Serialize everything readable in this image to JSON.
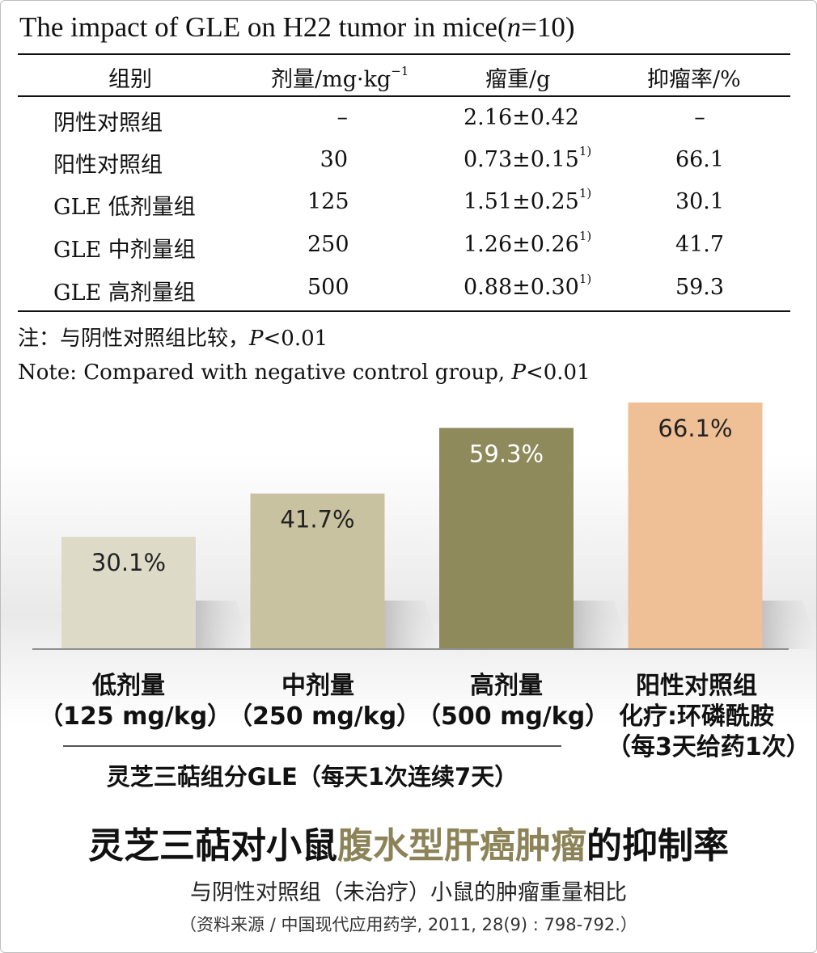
{
  "table": {
    "title_prefix": "The impact of GLE on H22 tumor in mice(",
    "title_n": "n",
    "title_suffix": "=10)",
    "headers": {
      "group": "组别",
      "dose_prefix": "剂量/mg·kg",
      "dose_sup": "−1",
      "weight": "瘤重/g",
      "rate": "抑瘤率/%"
    },
    "rows": [
      {
        "group": "阴性对照组",
        "dose": "–",
        "weight": "2.16±0.42",
        "mark": "",
        "rate": "–"
      },
      {
        "group": "阳性对照组",
        "dose": "30",
        "weight": "0.73±0.15",
        "mark": "1)",
        "rate": "66.1"
      },
      {
        "group": "GLE 低剂量组",
        "dose": "125",
        "weight": "1.51±0.25",
        "mark": "1)",
        "rate": "30.1"
      },
      {
        "group": "GLE 中剂量组",
        "dose": "250",
        "weight": "1.26±0.26",
        "mark": "1)",
        "rate": "41.7"
      },
      {
        "group": "GLE 高剂量组",
        "dose": "500",
        "weight": "0.88±0.30",
        "mark": "1)",
        "rate": "59.3"
      }
    ],
    "note_cn_prefix": "注：与阴性对照组比较，",
    "note_cn_p": "P",
    "note_cn_suffix": "<0.01",
    "note_en_prefix": "Note:  Compared with negative control group, ",
    "note_en_p": "P",
    "note_en_suffix": "<0.01"
  },
  "chart_data": {
    "type": "bar",
    "categories": [
      "低剂量（125 mg/kg）",
      "中剂量（250 mg/kg）",
      "高剂量（500 mg/kg）",
      "阳性对照组 化疗:环磷酰胺（每3天给药1次）"
    ],
    "values": [
      30.1,
      41.7,
      59.3,
      66.1
    ],
    "data_labels": [
      "30.1%",
      "41.7%",
      "59.3%",
      "66.1%"
    ],
    "colors": [
      "#dddac8",
      "#c9c2a0",
      "#8e8a5c",
      "#efbf95"
    ],
    "label_colors": [
      "#222222",
      "#222222",
      "#ffffff",
      "#222222"
    ],
    "ylim": [
      0,
      66.1
    ],
    "grid": false,
    "title": "灵芝三萜对小鼠腹水型肝癌肿瘤的抑制率",
    "xlabel": "",
    "ylabel": ""
  },
  "categories_display": [
    {
      "line1": "低剂量",
      "line2": "（125 mg/kg）",
      "line3": ""
    },
    {
      "line1": "中剂量",
      "line2": "（250 mg/kg）",
      "line3": ""
    },
    {
      "line1": "高剂量",
      "line2": "（500 mg/kg）",
      "line3": ""
    },
    {
      "line1": "阳性对照组",
      "line2": "化疗:环磷酰胺",
      "line3": "（每3天给药1次）"
    }
  ],
  "group_label": "灵芝三萜组分GLE（每天1次连续7天）",
  "headline": {
    "part1": "灵芝三萜对小鼠",
    "highlight": "腹水型肝癌肿瘤",
    "part2": "的抑制率",
    "highlight_color": "#8c8458"
  },
  "subline": "与阴性对照组（未治疗）小鼠的肿瘤重量相比",
  "source": "（资料来源 / 中国现代应用药学, 2011, 28(9) : 798-792.）"
}
